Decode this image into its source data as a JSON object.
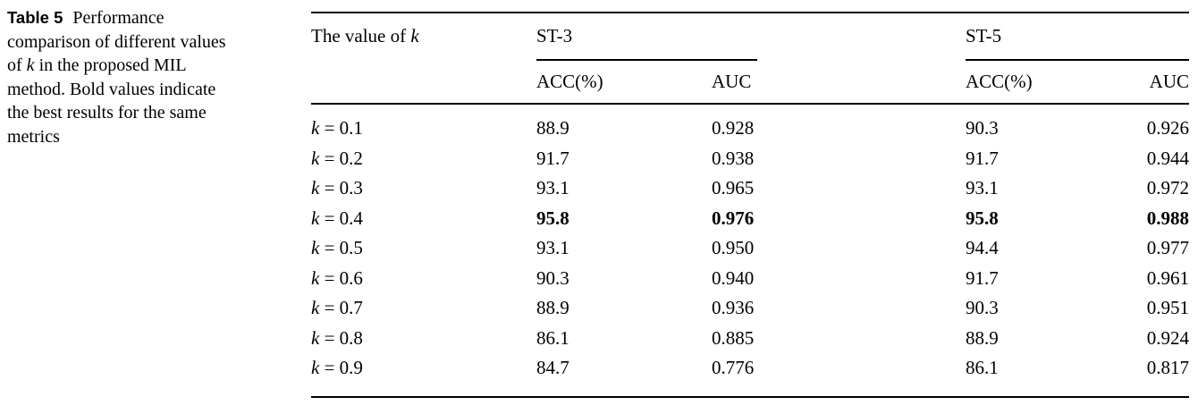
{
  "caption": {
    "label": "Table 5",
    "line1": "Performance",
    "line2": "comparison of different values",
    "line3_pre": "of ",
    "line3_k": "k",
    "line3_post": " in the proposed MIL",
    "line4": "method. Bold values indicate",
    "line5": "the best results for the same",
    "line6": "metrics"
  },
  "table": {
    "header": {
      "stub_prefix": "The value of ",
      "stub_symbol": "k",
      "groups": [
        {
          "label": "ST-3",
          "sub": [
            "ACC(%)",
            "AUC"
          ]
        },
        {
          "label": "ST-5",
          "sub": [
            "ACC(%)",
            "AUC"
          ]
        }
      ]
    },
    "rows": [
      {
        "symbol": "k",
        "eq": " = 0.1",
        "st3_acc": "88.9",
        "st3_auc": "0.928",
        "st5_acc": "90.3",
        "st5_auc": "0.926",
        "bold": false
      },
      {
        "symbol": "k",
        "eq": " = 0.2",
        "st3_acc": "91.7",
        "st3_auc": "0.938",
        "st5_acc": "91.7",
        "st5_auc": "0.944",
        "bold": false
      },
      {
        "symbol": "k",
        "eq": " = 0.3",
        "st3_acc": "93.1",
        "st3_auc": "0.965",
        "st5_acc": "93.1",
        "st5_auc": "0.972",
        "bold": false
      },
      {
        "symbol": "k",
        "eq": " = 0.4",
        "st3_acc": "95.8",
        "st3_auc": "0.976",
        "st5_acc": "95.8",
        "st5_auc": "0.988",
        "bold": true
      },
      {
        "symbol": "k",
        "eq": " = 0.5",
        "st3_acc": "93.1",
        "st3_auc": "0.950",
        "st5_acc": "94.4",
        "st5_auc": "0.977",
        "bold": false
      },
      {
        "symbol": "k",
        "eq": " = 0.6",
        "st3_acc": "90.3",
        "st3_auc": "0.940",
        "st5_acc": "91.7",
        "st5_auc": "0.961",
        "bold": false
      },
      {
        "symbol": "k",
        "eq": " = 0.7",
        "st3_acc": "88.9",
        "st3_auc": "0.936",
        "st5_acc": "90.3",
        "st5_auc": "0.951",
        "bold": false
      },
      {
        "symbol": "k",
        "eq": " = 0.8",
        "st3_acc": "86.1",
        "st3_auc": "0.885",
        "st5_acc": "88.9",
        "st5_auc": "0.924",
        "bold": false
      },
      {
        "symbol": "k",
        "eq": " = 0.9",
        "st3_acc": "84.7",
        "st3_auc": "0.776",
        "st5_acc": "86.1",
        "st5_auc": "0.817",
        "bold": false
      }
    ]
  },
  "colors": {
    "text": "#000000",
    "rule": "#000000",
    "background": "#ffffff"
  }
}
